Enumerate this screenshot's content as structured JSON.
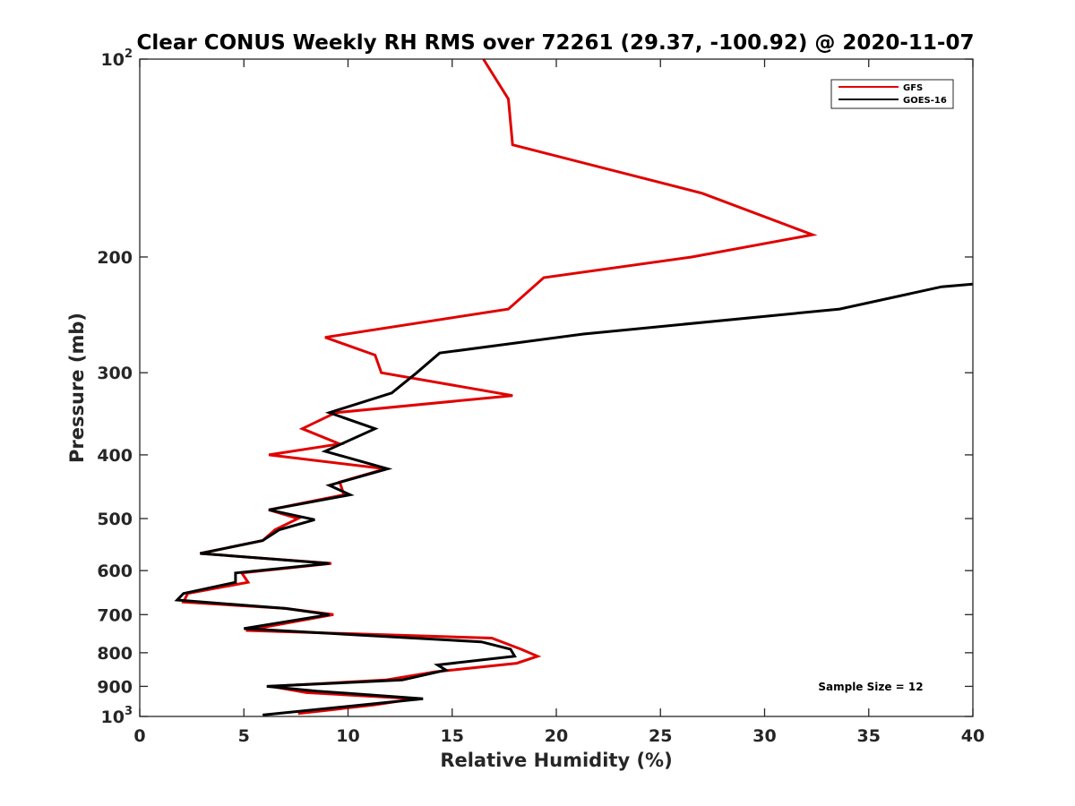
{
  "chart_data": {
    "type": "line",
    "title": "Clear CONUS Weekly RH RMS over 72261 (29.37, -100.92) @ 2020-11-07",
    "xlabel": "Relative Humidity (%)",
    "ylabel": "Pressure (mb)",
    "xlim": [
      0,
      40
    ],
    "ylim": [
      100,
      1000
    ],
    "y_scale": "log",
    "y_reversed": true,
    "x_ticks": [
      "0",
      "5",
      "10",
      "15",
      "20",
      "25",
      "30",
      "35",
      "40"
    ],
    "y_ticks": [
      {
        "value": 100,
        "base": "10",
        "exp": "2"
      },
      {
        "value": 200,
        "label": "200"
      },
      {
        "value": 300,
        "label": "300"
      },
      {
        "value": 400,
        "label": "400"
      },
      {
        "value": 500,
        "label": "500"
      },
      {
        "value": 600,
        "label": "600"
      },
      {
        "value": 700,
        "label": "700"
      },
      {
        "value": 800,
        "label": "800"
      },
      {
        "value": 900,
        "label": "900"
      },
      {
        "value": 1000,
        "base": "10",
        "exp": "3"
      }
    ],
    "grid": false,
    "legend_position": "top-right",
    "annotation": "Sample Size = 12",
    "series": [
      {
        "name": "GFS",
        "color": "#e00000",
        "points": [
          [
            16.5,
            100
          ],
          [
            17.7,
            115
          ],
          [
            17.9,
            135
          ],
          [
            27.0,
            160
          ],
          [
            32.3,
            185
          ],
          [
            26.5,
            200
          ],
          [
            19.4,
            215
          ],
          [
            17.7,
            240
          ],
          [
            8.9,
            265
          ],
          [
            11.3,
            282
          ],
          [
            11.6,
            300
          ],
          [
            17.9,
            325
          ],
          [
            9.4,
            345
          ],
          [
            7.8,
            365
          ],
          [
            9.6,
            385
          ],
          [
            6.2,
            400
          ],
          [
            11.8,
            420
          ],
          [
            9.6,
            440
          ],
          [
            9.8,
            460
          ],
          [
            6.2,
            485
          ],
          [
            7.6,
            500
          ],
          [
            6.5,
            520
          ],
          [
            5.9,
            540
          ],
          [
            2.9,
            565
          ],
          [
            9.2,
            585
          ],
          [
            4.9,
            605
          ],
          [
            5.2,
            625
          ],
          [
            2.3,
            650
          ],
          [
            2.1,
            670
          ],
          [
            7.0,
            685
          ],
          [
            9.3,
            700
          ],
          [
            5.1,
            740
          ],
          [
            16.9,
            760
          ],
          [
            18.3,
            790
          ],
          [
            19.1,
            810
          ],
          [
            18.1,
            830
          ],
          [
            14.2,
            855
          ],
          [
            11.8,
            880
          ],
          [
            6.3,
            900
          ],
          [
            8.0,
            920
          ],
          [
            13.2,
            940
          ],
          [
            11.3,
            960
          ],
          [
            7.6,
            990
          ]
        ]
      },
      {
        "name": "GOES-16",
        "color": "#000000",
        "points": [
          [
            40.0,
            220
          ],
          [
            38.5,
            222
          ],
          [
            33.6,
            240
          ],
          [
            21.3,
            262
          ],
          [
            14.4,
            280
          ],
          [
            13.3,
            300
          ],
          [
            12.1,
            322
          ],
          [
            9.1,
            345
          ],
          [
            11.3,
            365
          ],
          [
            8.9,
            395
          ],
          [
            11.9,
            420
          ],
          [
            9.1,
            445
          ],
          [
            10.1,
            460
          ],
          [
            6.2,
            485
          ],
          [
            8.4,
            502
          ],
          [
            6.7,
            520
          ],
          [
            5.9,
            540
          ],
          [
            2.9,
            565
          ],
          [
            9.1,
            585
          ],
          [
            4.6,
            605
          ],
          [
            4.6,
            625
          ],
          [
            2.1,
            650
          ],
          [
            1.8,
            665
          ],
          [
            7.0,
            685
          ],
          [
            9.1,
            700
          ],
          [
            5.0,
            735
          ],
          [
            16.4,
            770
          ],
          [
            17.8,
            790
          ],
          [
            18.0,
            810
          ],
          [
            14.3,
            835
          ],
          [
            14.7,
            850
          ],
          [
            12.6,
            880
          ],
          [
            6.1,
            900
          ],
          [
            8.5,
            915
          ],
          [
            13.6,
            940
          ],
          [
            5.9,
            995
          ]
        ]
      }
    ]
  }
}
